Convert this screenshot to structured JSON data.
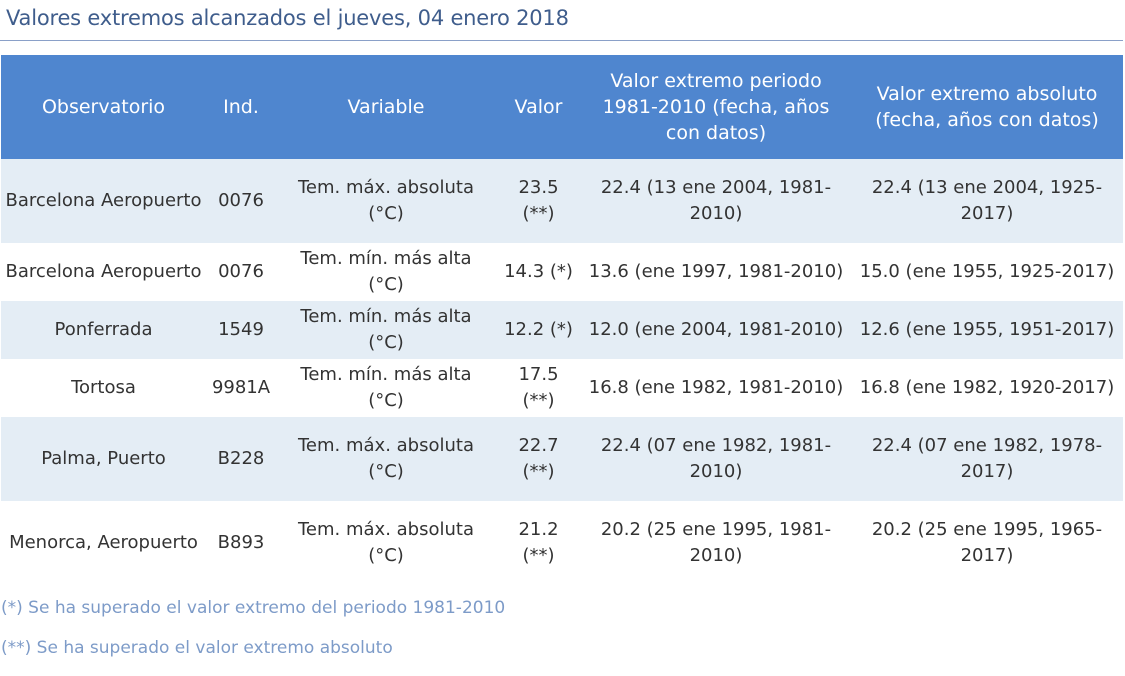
{
  "title": "Valores extremos alcanzados el jueves, 04 enero 2018",
  "table": {
    "headers": [
      "Observatorio",
      "Ind.",
      "Variable",
      "Valor",
      "Valor extremo periodo 1981-2010 (fecha, años con datos)",
      "Valor extremo absoluto (fecha, años con datos)"
    ],
    "rows": [
      [
        "Barcelona Aeropuerto",
        "0076",
        "Tem. máx. absoluta (°C)",
        "23.5 (**)",
        "22.4 (13 ene 2004, 1981-2010)",
        "22.4 (13 ene 2004, 1925-2017)"
      ],
      [
        "Barcelona Aeropuerto",
        "0076",
        "Tem. mín. más alta (°C)",
        "14.3 (*)",
        "13.6 (ene 1997, 1981-2010)",
        "15.0 (ene 1955, 1925-2017)"
      ],
      [
        "Ponferrada",
        "1549",
        "Tem. mín. más alta (°C)",
        "12.2 (*)",
        "12.0 (ene 2004, 1981-2010)",
        "12.6 (ene 1955, 1951-2017)"
      ],
      [
        "Tortosa",
        "9981A",
        "Tem. mín. más alta (°C)",
        "17.5 (**)",
        "16.8 (ene 1982, 1981-2010)",
        "16.8 (ene 1982, 1920-2017)"
      ],
      [
        "Palma, Puerto",
        "B228",
        "Tem. máx. absoluta (°C)",
        "22.7 (**)",
        "22.4 (07 ene 1982, 1981-2010)",
        "22.4 (07 ene 1982, 1978-2017)"
      ],
      [
        "Menorca, Aeropuerto",
        "B893",
        "Tem. máx. absoluta (°C)",
        "21.2 (**)",
        "20.2 (25 ene 1995, 1981-2010)",
        "20.2 (25 ene 1995, 1965-2017)"
      ]
    ]
  },
  "notes": [
    "(*) Se ha superado el valor extremo del periodo 1981-2010",
    "(**) Se ha superado el valor extremo absoluto"
  ],
  "colors": {
    "title": "#3f5d8c",
    "header_bg": "#4f86cf",
    "row_alt_bg": "#e4edf5",
    "notes": "#7d9bc8"
  }
}
